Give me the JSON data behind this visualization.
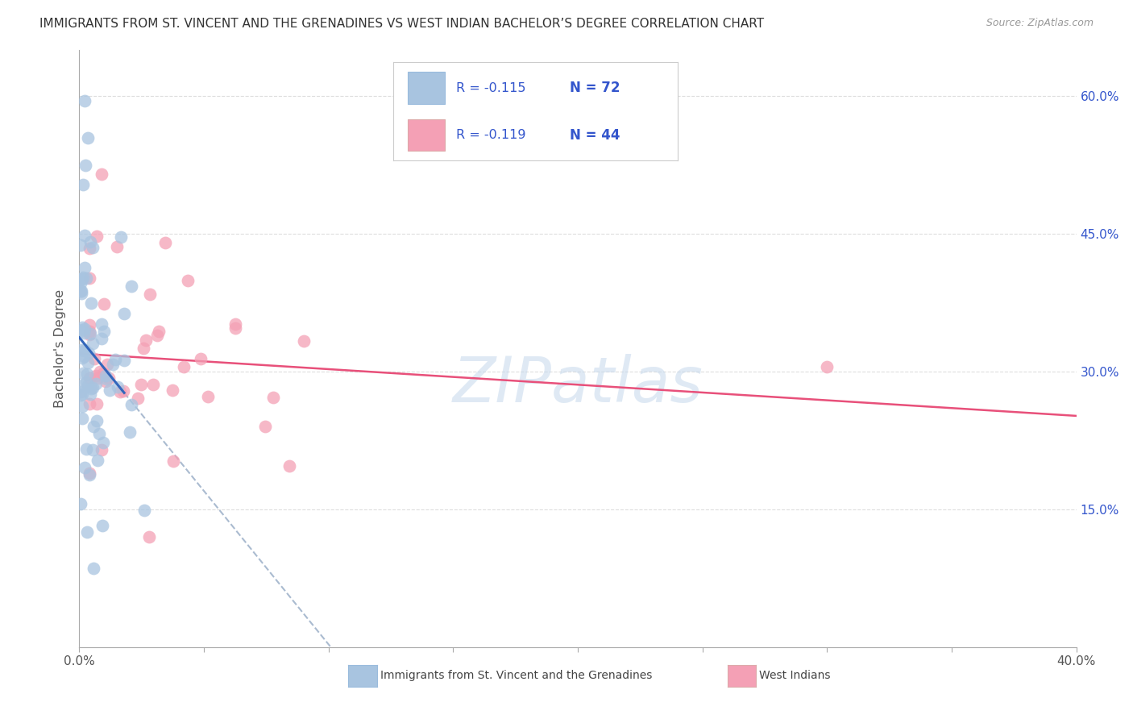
{
  "title": "IMMIGRANTS FROM ST. VINCENT AND THE GRENADINES VS WEST INDIAN BACHELOR’S DEGREE CORRELATION CHART",
  "source": "Source: ZipAtlas.com",
  "ylabel": "Bachelor's Degree",
  "ytick_labels": [
    "15.0%",
    "30.0%",
    "45.0%",
    "60.0%"
  ],
  "ytick_values": [
    0.15,
    0.3,
    0.45,
    0.6
  ],
  "xlim": [
    0.0,
    0.4
  ],
  "ylim": [
    0.0,
    0.65
  ],
  "legend1_label": "Immigrants from St. Vincent and the Grenadines",
  "legend2_label": "West Indians",
  "R1": -0.115,
  "N1": 72,
  "R2": -0.119,
  "N2": 44,
  "color1": "#a8c4e0",
  "color2": "#f4a0b5",
  "trendline1_color": "#3366bb",
  "trendline2_color": "#e8507a",
  "dashed_color": "#aabbd0",
  "legend_text_color": "#3355cc",
  "watermark": "ZIPatlas",
  "title_color": "#333333",
  "source_color": "#999999",
  "ylabel_color": "#555555",
  "axis_label_color": "#555555",
  "grid_color": "#dddddd",
  "spine_color": "#aaaaaa"
}
